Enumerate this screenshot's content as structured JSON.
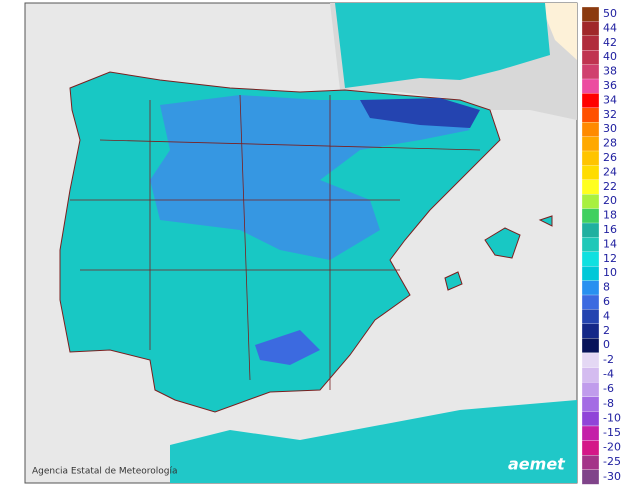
{
  "map": {
    "credit": "Agencia Estatal de Meteorología",
    "logo": "aemet",
    "legend": [
      {
        "label": "50",
        "color": "#8b3a0f"
      },
      {
        "label": "44",
        "color": "#a0282a"
      },
      {
        "label": "42",
        "color": "#b02c3c"
      },
      {
        "label": "40",
        "color": "#c03450"
      },
      {
        "label": "38",
        "color": "#d0406e"
      },
      {
        "label": "36",
        "color": "#ec4ca0"
      },
      {
        "label": "34",
        "color": "#ff0000"
      },
      {
        "label": "32",
        "color": "#ff5000"
      },
      {
        "label": "30",
        "color": "#ff8a00"
      },
      {
        "label": "28",
        "color": "#ffa800"
      },
      {
        "label": "26",
        "color": "#ffc400"
      },
      {
        "label": "24",
        "color": "#ffdc00"
      },
      {
        "label": "22",
        "color": "#ffff20"
      },
      {
        "label": "20",
        "color": "#a8f040"
      },
      {
        "label": "18",
        "color": "#40d060"
      },
      {
        "label": "16",
        "color": "#20b0a0"
      },
      {
        "label": "14",
        "color": "#20c8b8"
      },
      {
        "label": "12",
        "color": "#10e0e0"
      },
      {
        "label": "10",
        "color": "#00c8d8"
      },
      {
        "label": "8",
        "color": "#2890f0"
      },
      {
        "label": "6",
        "color": "#3c6ae0"
      },
      {
        "label": "4",
        "color": "#2444b0"
      },
      {
        "label": "2",
        "color": "#142888"
      },
      {
        "label": "0",
        "color": "#08145a"
      },
      {
        "label": "-2",
        "color": "#e4d8f4"
      },
      {
        "label": "-4",
        "color": "#d4bcf0"
      },
      {
        "label": "-6",
        "color": "#c09cec"
      },
      {
        "label": "-8",
        "color": "#a46ce4"
      },
      {
        "label": "-10",
        "color": "#9044d8"
      },
      {
        "label": "-15",
        "color": "#c420a8"
      },
      {
        "label": "-20",
        "color": "#d41888"
      },
      {
        "label": "-25",
        "color": "#a43488"
      },
      {
        "label": "-30",
        "color": "#80448a"
      }
    ]
  }
}
